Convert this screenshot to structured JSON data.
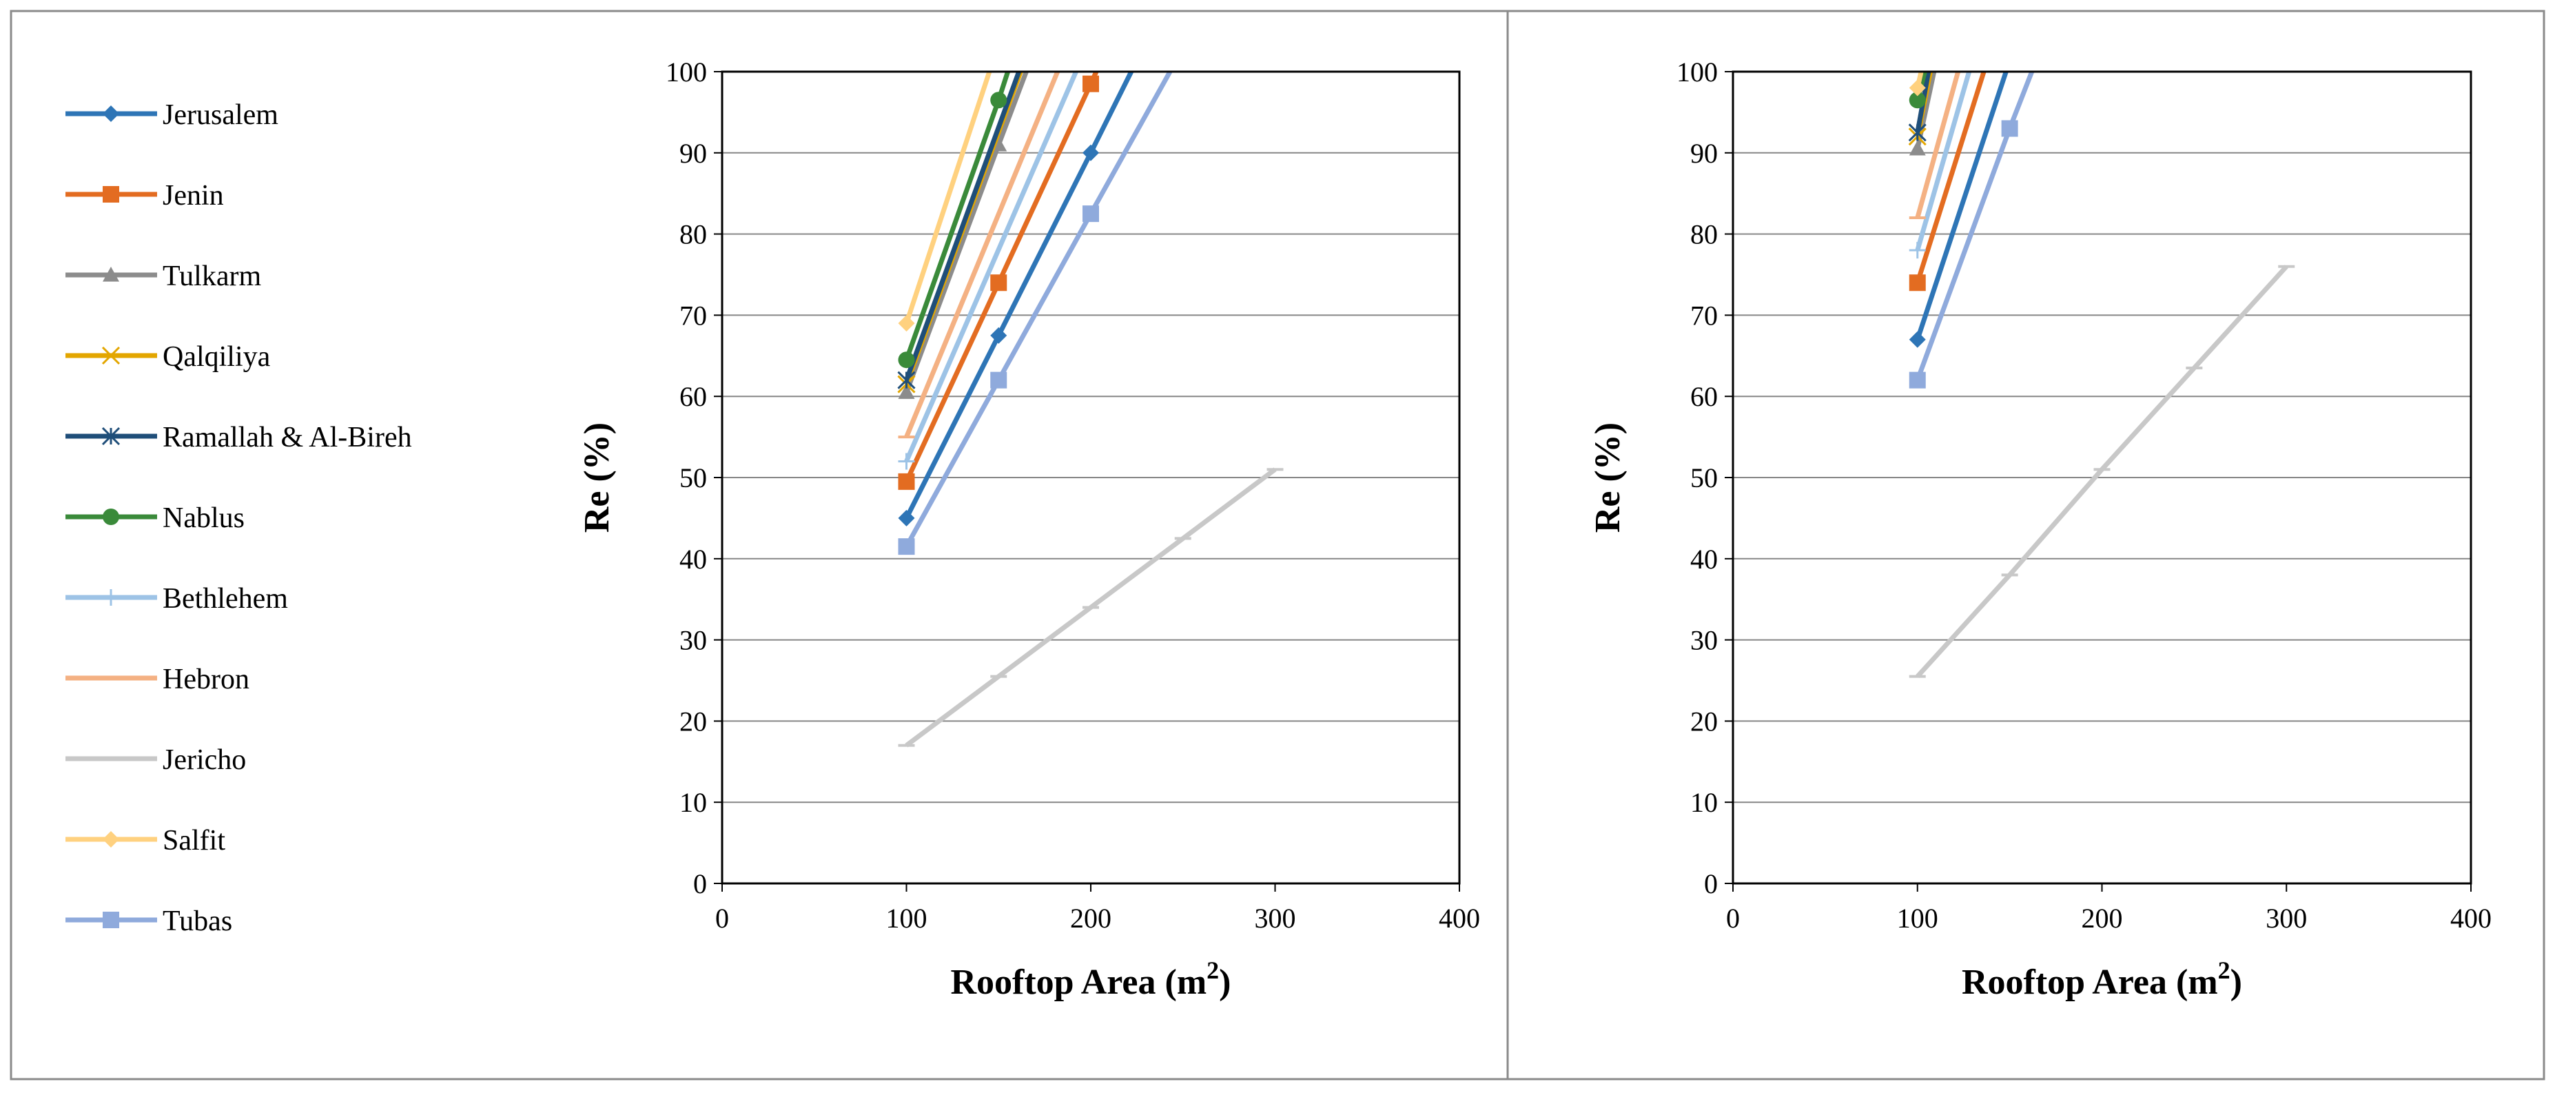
{
  "chart_data": [
    {
      "type": "line",
      "panel": "left",
      "xlabel": "Rooftop Area (m",
      "xlabel_sup": "2",
      "xlabel_close": ")",
      "ylabel": "Re (%)",
      "xlim": [
        0,
        400
      ],
      "ylim": [
        0,
        100
      ],
      "xticks": [
        "0",
        "100",
        "200",
        "300",
        "400"
      ],
      "yticks": [
        "0",
        "10",
        "20",
        "30",
        "40",
        "50",
        "60",
        "70",
        "80",
        "90",
        "100"
      ],
      "grid": "horizontal",
      "legend": "left",
      "series": [
        {
          "name": "Jerusalem",
          "color": "#2e75b6",
          "marker": "diamond",
          "points": [
            [
              100,
              45
            ],
            [
              150,
              67.5
            ],
            [
              200,
              90
            ]
          ],
          "end": [
            222,
            100
          ]
        },
        {
          "name": "Jenin",
          "color": "#e36c21",
          "marker": "square",
          "points": [
            [
              100,
              49.5
            ],
            [
              150,
              74
            ],
            [
              200,
              98.5
            ]
          ],
          "end": [
            203,
            100
          ]
        },
        {
          "name": "Tulkarm",
          "color": "#8c8c8c",
          "marker": "triangle",
          "points": [
            [
              100,
              60.5
            ],
            [
              150,
              91
            ]
          ],
          "end": [
            165,
            100
          ]
        },
        {
          "name": "Qalqiliya",
          "color": "#e3a600",
          "marker": "x",
          "points": [
            [
              100,
              61.5
            ]
          ],
          "end": [
            162,
            100
          ]
        },
        {
          "name": "Ramallah & Al-Bireh",
          "color": "#1f4e79",
          "marker": "star",
          "points": [
            [
              100,
              62
            ]
          ],
          "end": [
            161,
            100
          ]
        },
        {
          "name": "Nablus",
          "color": "#3a8a3a",
          "marker": "circle",
          "points": [
            [
              100,
              64.5
            ],
            [
              150,
              96.5
            ]
          ],
          "end": [
            155,
            100
          ]
        },
        {
          "name": "Bethlehem",
          "color": "#9dc3e6",
          "marker": "plus",
          "points": [
            [
              100,
              52
            ]
          ],
          "end": [
            192,
            100
          ]
        },
        {
          "name": "Hebron",
          "color": "#f4b183",
          "marker": "dash",
          "points": [
            [
              100,
              55
            ]
          ],
          "end": [
            182,
            100
          ]
        },
        {
          "name": "Jericho",
          "color": "#c8c8c8",
          "marker": "dash",
          "points": [
            [
              100,
              17
            ],
            [
              150,
              25.5
            ],
            [
              200,
              34
            ],
            [
              250,
              42.5
            ],
            [
              300,
              51
            ]
          ],
          "end": null
        },
        {
          "name": "Salfit",
          "color": "#ffd17f",
          "marker": "diamond",
          "points": [
            [
              100,
              69
            ]
          ],
          "end": [
            145,
            100
          ]
        },
        {
          "name": "Tubas",
          "color": "#8faadc",
          "marker": "square",
          "points": [
            [
              100,
              41.5
            ],
            [
              150,
              62
            ],
            [
              200,
              82.5
            ]
          ],
          "end": [
            243,
            100
          ]
        }
      ]
    },
    {
      "type": "line",
      "panel": "right",
      "xlabel": "Rooftop Area (m",
      "xlabel_sup": "2",
      "xlabel_close": ")",
      "ylabel": "Re (%)",
      "xlim": [
        0,
        400
      ],
      "ylim": [
        0,
        100
      ],
      "xticks": [
        "0",
        "100",
        "200",
        "300",
        "400"
      ],
      "yticks": [
        "0",
        "10",
        "20",
        "30",
        "40",
        "50",
        "60",
        "70",
        "80",
        "90",
        "100"
      ],
      "grid": "horizontal",
      "legend": "none",
      "series": [
        {
          "name": "Jerusalem",
          "color": "#2e75b6",
          "marker": "diamond",
          "points": [
            [
              100,
              67
            ]
          ],
          "end": [
            148,
            100
          ]
        },
        {
          "name": "Jenin",
          "color": "#e36c21",
          "marker": "square",
          "points": [
            [
              100,
              74
            ]
          ],
          "end": [
            136,
            100
          ]
        },
        {
          "name": "Tulkarm",
          "color": "#8c8c8c",
          "marker": "triangle",
          "points": [
            [
              100,
              90.5
            ]
          ],
          "end": [
            109,
            100
          ]
        },
        {
          "name": "Qalqiliya",
          "color": "#e3a600",
          "marker": "x",
          "points": [
            [
              100,
              92
            ]
          ],
          "end": [
            107,
            100
          ]
        },
        {
          "name": "Ramallah & Al-Bireh",
          "color": "#1f4e79",
          "marker": "star",
          "points": [
            [
              100,
              92.5
            ]
          ],
          "end": [
            106,
            100
          ]
        },
        {
          "name": "Nablus",
          "color": "#3a8a3a",
          "marker": "circle",
          "points": [
            [
              100,
              96.5
            ]
          ],
          "end": [
            104,
            100
          ]
        },
        {
          "name": "Bethlehem",
          "color": "#9dc3e6",
          "marker": "plus",
          "points": [
            [
              100,
              78
            ]
          ],
          "end": [
            128,
            100
          ]
        },
        {
          "name": "Hebron",
          "color": "#f4b183",
          "marker": "dash",
          "points": [
            [
              100,
              82
            ]
          ],
          "end": [
            122,
            100
          ]
        },
        {
          "name": "Jericho",
          "color": "#c8c8c8",
          "marker": "dash",
          "points": [
            [
              100,
              25.5
            ],
            [
              150,
              38
            ],
            [
              200,
              51
            ],
            [
              250,
              63.5
            ],
            [
              300,
              76
            ]
          ],
          "end": null
        },
        {
          "name": "Salfit",
          "color": "#ffd17f",
          "marker": "diamond",
          "points": [
            [
              100,
              98
            ]
          ],
          "end": [
            102,
            100
          ]
        },
        {
          "name": "Tubas",
          "color": "#8faadc",
          "marker": "square",
          "points": [
            [
              100,
              62
            ],
            [
              150,
              93
            ]
          ],
          "end": [
            162,
            100
          ]
        }
      ]
    }
  ]
}
